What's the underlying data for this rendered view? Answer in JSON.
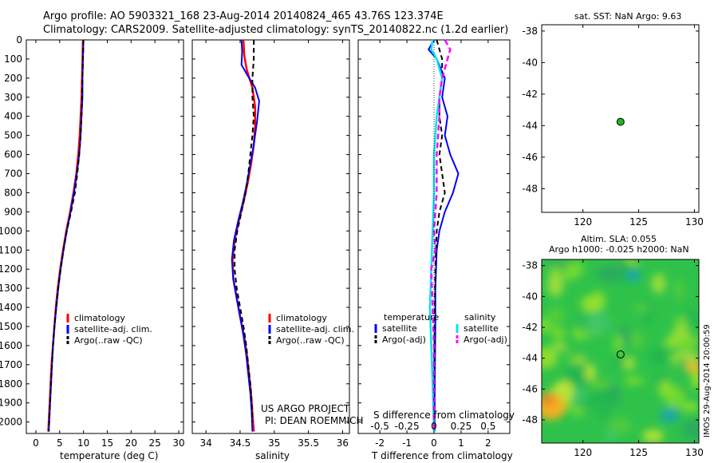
{
  "header": {
    "line1": "Argo profile: AO 5903321_168 23-Aug-2014 20140824_465 43.76S 123.374E",
    "line2": "Climatology: CARS2009. Satellite-adjusted climatology: synTS_20140822.nc (1.2d earlier)"
  },
  "side_stamp": "IMOS 29-Aug-2014 20:00:59",
  "colors": {
    "climatology": "#ff0000",
    "satellite_clim": "#0000ff",
    "argo": "#000000",
    "satellite_salinity": "#00e5ee",
    "argo_salinity_adj": "#ff00ff",
    "marker": "#22b522"
  },
  "chart_data": [
    {
      "type": "line",
      "panel": "temperature",
      "xlabel": "temperature (deg C)",
      "ylabel": "",
      "x_ticks": [
        "0",
        "5",
        "10",
        "15",
        "20",
        "25",
        "30"
      ],
      "y_ticks": [
        "0",
        "100",
        "200",
        "300",
        "400",
        "500",
        "600",
        "700",
        "800",
        "900",
        "1000",
        "1100",
        "1200",
        "1300",
        "1400",
        "1500",
        "1600",
        "1700",
        "1800",
        "1900",
        "2000"
      ],
      "xlim": [
        -2,
        31
      ],
      "ylim": [
        2060,
        0
      ],
      "legend": [
        "climatology",
        "satellite-adj. clim.",
        "Argo(..raw -QC)"
      ],
      "series": [
        {
          "name": "climatology",
          "points": [
            [
              9.9,
              0
            ],
            [
              9.8,
              100
            ],
            [
              9.7,
              200
            ],
            [
              9.6,
              300
            ],
            [
              9.4,
              400
            ],
            [
              9.2,
              500
            ],
            [
              8.9,
              600
            ],
            [
              8.5,
              700
            ],
            [
              7.9,
              800
            ],
            [
              7.2,
              900
            ],
            [
              6.4,
              1000
            ],
            [
              5.7,
              1100
            ],
            [
              5.1,
              1200
            ],
            [
              4.6,
              1300
            ],
            [
              4.2,
              1400
            ],
            [
              3.9,
              1500
            ],
            [
              3.6,
              1600
            ],
            [
              3.3,
              1700
            ],
            [
              3.1,
              1800
            ],
            [
              2.9,
              1900
            ],
            [
              2.7,
              2000
            ],
            [
              2.6,
              2050
            ]
          ]
        },
        {
          "name": "satellite-adj. clim.",
          "points": [
            [
              10.0,
              0
            ],
            [
              9.9,
              100
            ],
            [
              9.8,
              200
            ],
            [
              9.8,
              300
            ],
            [
              9.6,
              400
            ],
            [
              9.4,
              500
            ],
            [
              9.1,
              600
            ],
            [
              8.6,
              700
            ],
            [
              8.0,
              800
            ],
            [
              7.3,
              900
            ],
            [
              6.5,
              1000
            ],
            [
              5.8,
              1100
            ],
            [
              5.2,
              1200
            ],
            [
              4.7,
              1300
            ],
            [
              4.3,
              1400
            ],
            [
              3.9,
              1500
            ],
            [
              3.6,
              1600
            ],
            [
              3.4,
              1700
            ],
            [
              3.2,
              1800
            ],
            [
              3.0,
              1900
            ],
            [
              2.8,
              2000
            ],
            [
              2.7,
              2050
            ]
          ]
        },
        {
          "name": "Argo(..raw -QC)",
          "points": [
            [
              10.0,
              0
            ],
            [
              9.9,
              100
            ],
            [
              9.8,
              200
            ],
            [
              9.7,
              300
            ],
            [
              9.6,
              400
            ],
            [
              9.4,
              500
            ],
            [
              9.1,
              600
            ],
            [
              8.7,
              700
            ],
            [
              8.2,
              800
            ],
            [
              7.4,
              900
            ],
            [
              6.5,
              1000
            ],
            [
              5.8,
              1100
            ],
            [
              5.2,
              1200
            ],
            [
              4.7,
              1300
            ],
            [
              4.3,
              1400
            ],
            [
              3.9,
              1500
            ],
            [
              3.6,
              1600
            ],
            [
              3.4,
              1700
            ],
            [
              3.2,
              1800
            ],
            [
              3.0,
              1900
            ],
            [
              2.8,
              2000
            ],
            [
              2.7,
              2050
            ]
          ]
        }
      ]
    },
    {
      "type": "line",
      "panel": "salinity",
      "xlabel": "salinity",
      "x_ticks": [
        "34",
        "34.5",
        "35",
        "35.5",
        "36"
      ],
      "xlim": [
        33.8,
        36.1
      ],
      "ylim": [
        2060,
        0
      ],
      "legend": [
        "climatology",
        "satellite-adj. clim.",
        "Argo(..raw -QC)"
      ],
      "annotation": [
        "US ARGO PROJECT",
        "PI: DEAN ROEMMICH"
      ],
      "series": [
        {
          "name": "climatology",
          "points": [
            [
              34.55,
              0
            ],
            [
              34.56,
              80
            ],
            [
              34.6,
              160
            ],
            [
              34.68,
              250
            ],
            [
              34.72,
              350
            ],
            [
              34.72,
              450
            ],
            [
              34.7,
              550
            ],
            [
              34.66,
              650
            ],
            [
              34.61,
              750
            ],
            [
              34.55,
              850
            ],
            [
              34.48,
              950
            ],
            [
              34.42,
              1050
            ],
            [
              34.39,
              1150
            ],
            [
              34.4,
              1250
            ],
            [
              34.45,
              1350
            ],
            [
              34.5,
              1450
            ],
            [
              34.56,
              1550
            ],
            [
              34.6,
              1650
            ],
            [
              34.63,
              1750
            ],
            [
              34.66,
              1850
            ],
            [
              34.68,
              1950
            ],
            [
              34.7,
              2050
            ]
          ]
        },
        {
          "name": "satellite-adj. clim.",
          "points": [
            [
              34.52,
              0
            ],
            [
              34.53,
              60
            ],
            [
              34.52,
              130
            ],
            [
              34.6,
              180
            ],
            [
              34.72,
              250
            ],
            [
              34.78,
              320
            ],
            [
              34.75,
              420
            ],
            [
              34.7,
              550
            ],
            [
              34.65,
              650
            ],
            [
              34.6,
              750
            ],
            [
              34.54,
              850
            ],
            [
              34.47,
              950
            ],
            [
              34.41,
              1050
            ],
            [
              34.38,
              1150
            ],
            [
              34.4,
              1250
            ],
            [
              34.45,
              1350
            ],
            [
              34.5,
              1450
            ],
            [
              34.55,
              1550
            ],
            [
              34.59,
              1650
            ],
            [
              34.62,
              1750
            ],
            [
              34.65,
              1850
            ],
            [
              34.67,
              1950
            ],
            [
              34.68,
              2050
            ]
          ]
        },
        {
          "name": "Argo(..raw -QC)",
          "points": [
            [
              34.7,
              0
            ],
            [
              34.7,
              100
            ],
            [
              34.68,
              200
            ],
            [
              34.68,
              300
            ],
            [
              34.7,
              400
            ],
            [
              34.68,
              500
            ],
            [
              34.65,
              600
            ],
            [
              34.62,
              700
            ],
            [
              34.58,
              800
            ],
            [
              34.52,
              900
            ],
            [
              34.46,
              1000
            ],
            [
              34.42,
              1100
            ],
            [
              34.42,
              1200
            ],
            [
              34.45,
              1300
            ],
            [
              34.5,
              1400
            ],
            [
              34.55,
              1500
            ],
            [
              34.59,
              1600
            ],
            [
              34.62,
              1700
            ],
            [
              34.65,
              1800
            ],
            [
              34.67,
              1900
            ],
            [
              34.68,
              2000
            ]
          ]
        }
      ]
    },
    {
      "type": "line",
      "panel": "difference",
      "xlabel": "T difference from climatology",
      "top_axis_label": "S difference from climatology",
      "x_ticks": [
        "-2",
        "-1",
        "0",
        "1",
        "2"
      ],
      "top_ticks": [
        "-0.5",
        "-0.25",
        "0",
        "0.25",
        "0.5"
      ],
      "xlim": [
        -2.8,
        2.8
      ],
      "ylim": [
        2060,
        0
      ],
      "legend_headers": [
        "temperature",
        "salinity"
      ],
      "legend_left": [
        "satellite",
        "Argo(-adj)"
      ],
      "legend_right": [
        "satellite",
        "Argo(-adj)"
      ],
      "series": [
        {
          "name": "temperature satellite",
          "points": [
            [
              0,
              0
            ],
            [
              -0.2,
              50
            ],
            [
              0.1,
              100
            ],
            [
              0.4,
              200
            ],
            [
              0.3,
              300
            ],
            [
              0.5,
              400
            ],
            [
              0.4,
              500
            ],
            [
              0.6,
              600
            ],
            [
              0.9,
              700
            ],
            [
              0.7,
              800
            ],
            [
              0.4,
              900
            ],
            [
              0.2,
              1000
            ],
            [
              0.1,
              1100
            ],
            [
              0.05,
              1300
            ],
            [
              0.05,
              1500
            ],
            [
              0.03,
              1800
            ],
            [
              0.02,
              2050
            ]
          ]
        },
        {
          "name": "temperature Argo(-adj)",
          "points": [
            [
              0.1,
              0
            ],
            [
              0.2,
              50
            ],
            [
              0.3,
              100
            ],
            [
              0.3,
              200
            ],
            [
              0.2,
              300
            ],
            [
              0.2,
              400
            ],
            [
              0.3,
              500
            ],
            [
              0.2,
              600
            ],
            [
              0.3,
              700
            ],
            [
              0.4,
              800
            ],
            [
              0.2,
              900
            ],
            [
              0.1,
              1000
            ],
            [
              0.05,
              1200
            ],
            [
              0.02,
              1500
            ],
            [
              0,
              2050
            ]
          ]
        },
        {
          "name": "salinity satellite",
          "points": [
            [
              -0.05,
              0
            ],
            [
              -0.1,
              50
            ],
            [
              0.1,
              100
            ],
            [
              0.3,
              200
            ],
            [
              0.2,
              300
            ],
            [
              0.1,
              400
            ],
            [
              0.05,
              500
            ],
            [
              0,
              600
            ],
            [
              0,
              800
            ],
            [
              -0.05,
              1000
            ],
            [
              -0.1,
              1200
            ],
            [
              -0.15,
              1400
            ],
            [
              -0.1,
              1600
            ],
            [
              -0.05,
              1800
            ],
            [
              0,
              2050
            ]
          ]
        },
        {
          "name": "salinity Argo(-adj)",
          "points": [
            [
              0.4,
              0
            ],
            [
              0.6,
              50
            ],
            [
              0.5,
              100
            ],
            [
              0.3,
              200
            ],
            [
              0.2,
              300
            ],
            [
              0.2,
              400
            ],
            [
              0.15,
              500
            ],
            [
              0.1,
              600
            ],
            [
              0.1,
              800
            ],
            [
              0,
              1000
            ],
            [
              0.05,
              1100
            ],
            [
              -0.1,
              1200
            ],
            [
              -0.05,
              1400
            ],
            [
              0,
              1600
            ],
            [
              0,
              2050
            ]
          ]
        }
      ]
    },
    {
      "type": "scatter",
      "panel": "map-sst",
      "title": "sat. SST: NaN  Argo: 9.63",
      "x_ticks": [
        "120",
        "125",
        "130"
      ],
      "y_ticks": [
        "-38",
        "-40",
        "-42",
        "-44",
        "-46",
        "-48"
      ],
      "xlim": [
        116.3,
        130.4
      ],
      "ylim": [
        -49.5,
        -37.6
      ],
      "points": [
        [
          123.374,
          -43.76
        ]
      ]
    },
    {
      "type": "heatmap",
      "panel": "map-sla",
      "title_line1": "Altim. SLA: 0.055",
      "title_line2": "Argo h1000: -0.025 h2000: NaN",
      "x_ticks": [
        "120",
        "125",
        "130"
      ],
      "y_ticks": [
        "-38",
        "-40",
        "-42",
        "-44",
        "-46",
        "-48"
      ],
      "xlim": [
        116.3,
        130.4
      ],
      "ylim": [
        -49.5,
        -37.6
      ],
      "points": [
        [
          123.374,
          -43.76
        ]
      ]
    }
  ]
}
